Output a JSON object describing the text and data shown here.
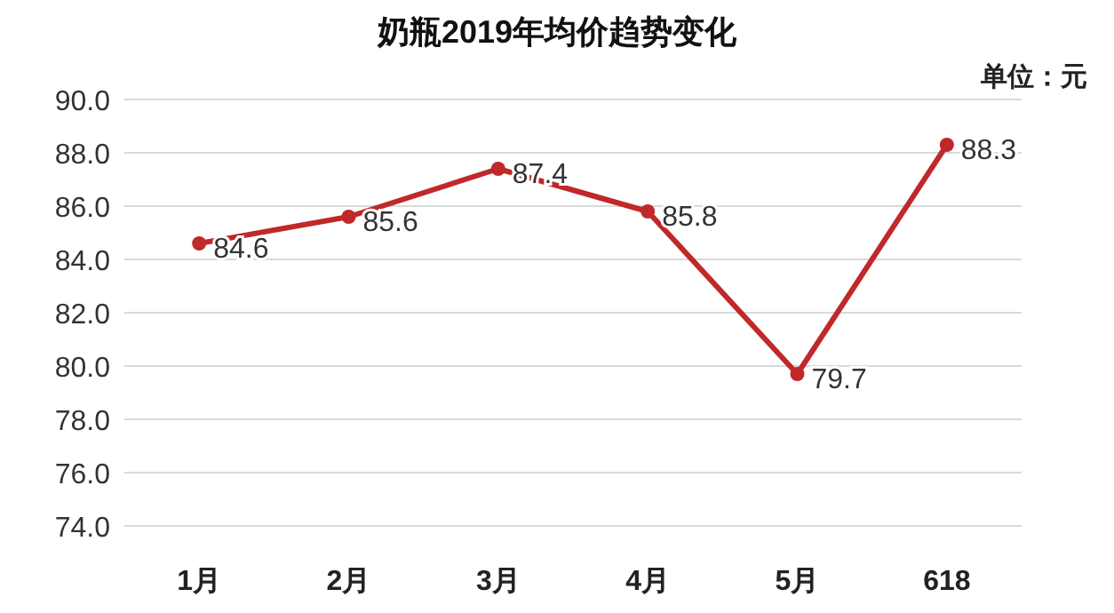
{
  "chart_data": {
    "type": "line",
    "title": "奶瓶2019年均价趋势变化",
    "annotations": [
      "单位：元"
    ],
    "categories": [
      "1月",
      "2月",
      "3月",
      "4月",
      "5月",
      "618"
    ],
    "series": [
      {
        "color": "#c0282a",
        "values": [
          84.6,
          85.6,
          87.4,
          85.8,
          79.7,
          88.3
        ]
      }
    ],
    "ylim": [
      74,
      90
    ],
    "yticks": [
      {
        "value": 74,
        "label": "74.0"
      },
      {
        "value": 76,
        "label": "76.0"
      },
      {
        "value": 78,
        "label": "78.0"
      },
      {
        "value": 80,
        "label": "80.0"
      },
      {
        "value": 82,
        "label": "82.0"
      },
      {
        "value": 84,
        "label": "84.0"
      },
      {
        "value": 86,
        "label": "86.0"
      },
      {
        "value": 88,
        "label": "88.0"
      },
      {
        "value": 90,
        "label": "90.0"
      }
    ],
    "grid": "y",
    "marker": "circle",
    "line_style": "solid",
    "data_labels": true
  }
}
